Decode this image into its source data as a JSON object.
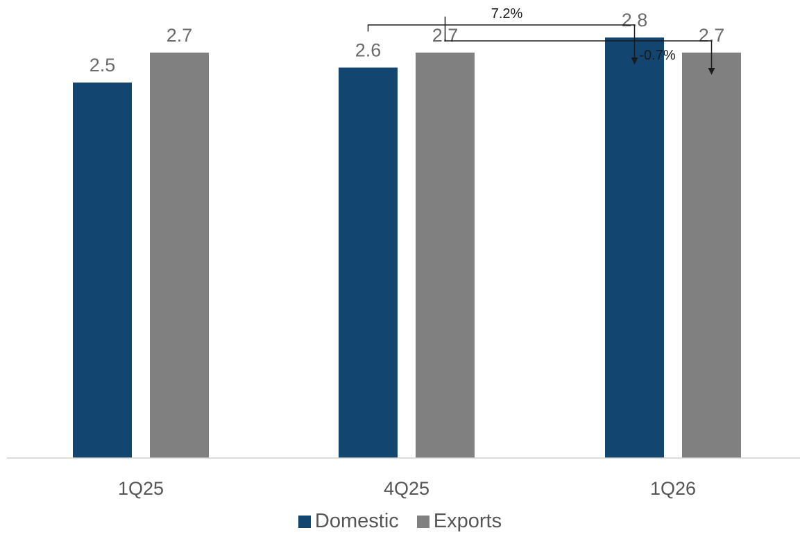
{
  "chart_data": {
    "type": "bar",
    "categories": [
      "1Q25",
      "4Q25",
      "1Q26"
    ],
    "series": [
      {
        "name": "Domestic",
        "color": "#124570",
        "values": [
          2.5,
          2.6,
          2.8
        ]
      },
      {
        "name": "Exports",
        "color": "#808080",
        "values": [
          2.7,
          2.7,
          2.7
        ]
      }
    ],
    "value_labels": [
      [
        "2.5",
        "2.6",
        "2.8"
      ],
      [
        "2.7",
        "2.7",
        "2.7"
      ]
    ],
    "annotations": [
      {
        "text": "7.2%",
        "from": {
          "series": 0,
          "category": 1
        },
        "to": {
          "series": 0,
          "category": 2
        }
      },
      {
        "text": "-0.7%",
        "from": {
          "series": 1,
          "category": 1
        },
        "to": {
          "series": 1,
          "category": 2
        }
      }
    ],
    "ylim": [
      0,
      3.05
    ],
    "grid": false,
    "legend_position": "bottom-center"
  },
  "legend": {
    "items": [
      "Domestic",
      "Exports"
    ]
  }
}
